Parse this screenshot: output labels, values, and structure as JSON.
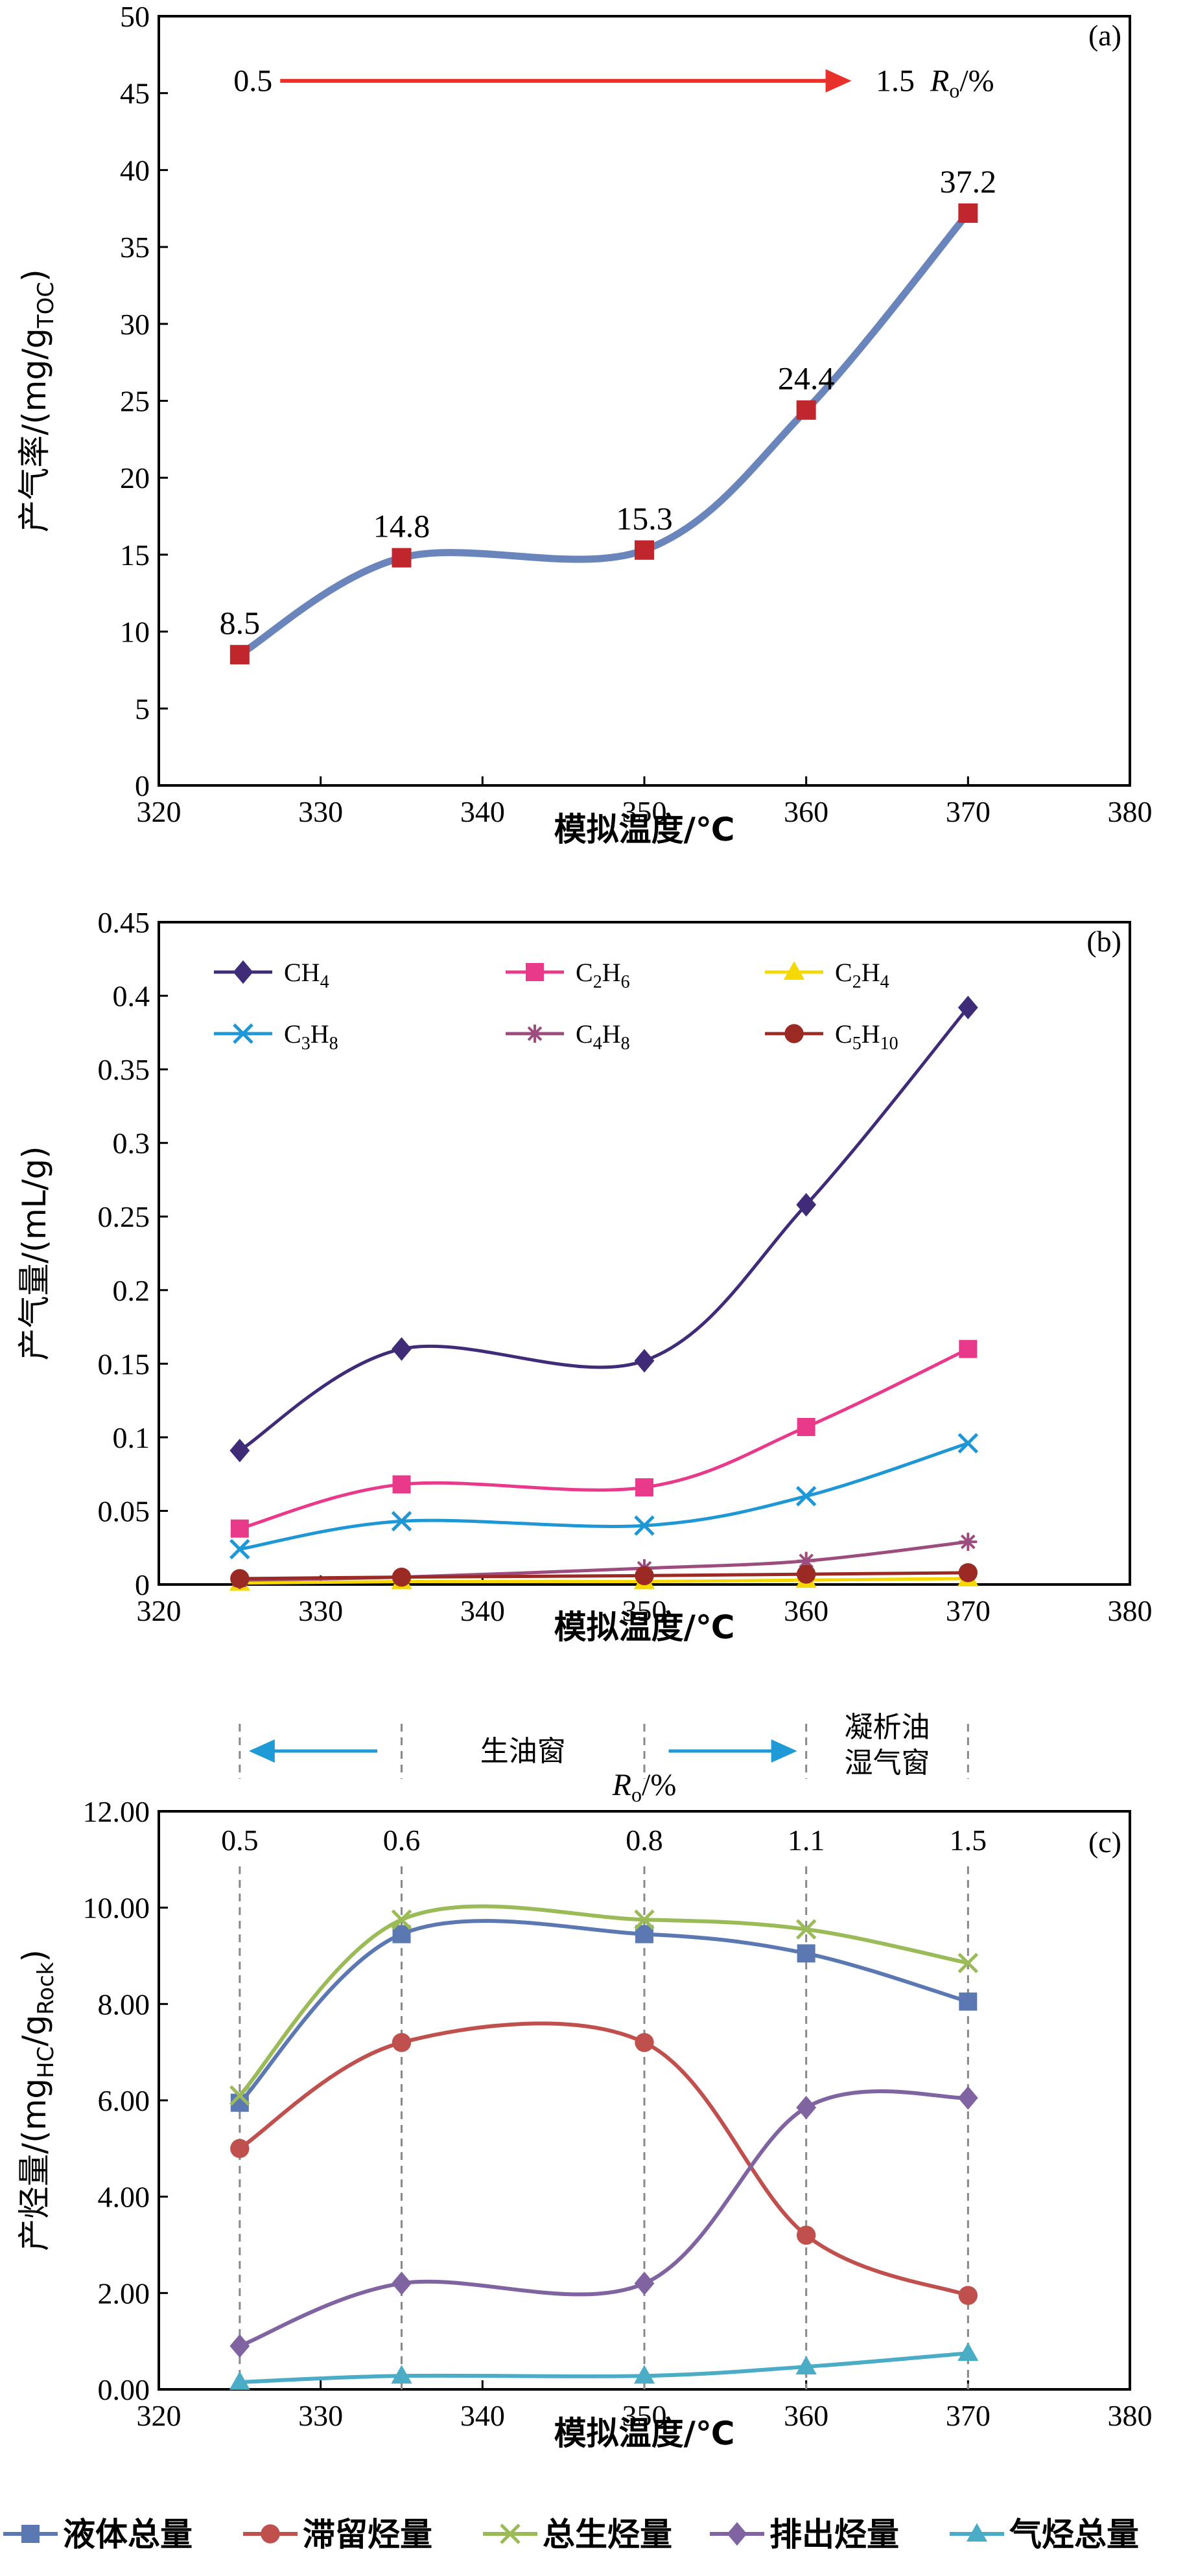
{
  "chart_data": [
    {
      "panel": "(a)",
      "type": "line",
      "x": [
        325,
        335,
        350,
        360,
        370
      ],
      "values": [
        8.5,
        14.8,
        15.3,
        24.4,
        37.2
      ],
      "data_labels": [
        "8.5",
        "14.8",
        "15.3",
        "24.4",
        "37.2"
      ],
      "xlabel": "模拟温度/℃",
      "ylabel_main": "产气率/(mg/g",
      "ylabel_sub": "TOC",
      "ylabel_close": ")",
      "xlim": [
        320,
        380
      ],
      "ylim": [
        0,
        50
      ],
      "xticks": [
        "320",
        "330",
        "340",
        "350",
        "360",
        "370",
        "380"
      ],
      "yticks": [
        "0",
        "5",
        "10",
        "15",
        "20",
        "25",
        "30",
        "35",
        "40",
        "45",
        "50"
      ],
      "line_color": "#6a85bb",
      "marker_color": "#c0272d",
      "arrow": {
        "from_label": "0.5",
        "to_label": "1.5",
        "unit_italic": "R",
        "unit_sub": "o",
        "unit_rest": "/%",
        "color": "#e8312a"
      },
      "grid": false
    },
    {
      "panel": "(b)",
      "type": "line",
      "x": [
        325,
        335,
        350,
        360,
        370
      ],
      "xlabel": "模拟温度/℃",
      "ylabel": "产气量/(mL/g)",
      "xlim": [
        320,
        380
      ],
      "ylim": [
        0,
        0.45
      ],
      "xticks": [
        "320",
        "330",
        "340",
        "350",
        "360",
        "370",
        "380"
      ],
      "yticks": [
        "0",
        "0.05",
        "0.1",
        "0.15",
        "0.2",
        "0.25",
        "0.3",
        "0.35",
        "0.4",
        "0.45"
      ],
      "legend_position": "top-left",
      "series": [
        {
          "name_base": "CH",
          "name_sub": "4",
          "values": [
            0.091,
            0.16,
            0.152,
            0.258,
            0.392
          ],
          "color": "#3f2b78",
          "marker": "diamond"
        },
        {
          "name_base": "C",
          "name_mid": "2",
          "name_base2": "H",
          "name_sub": "6",
          "values": [
            0.038,
            0.068,
            0.066,
            0.107,
            0.16
          ],
          "color": "#e8398b",
          "marker": "square"
        },
        {
          "name_base": "C",
          "name_mid": "2",
          "name_base2": "H",
          "name_sub": "4",
          "values": [
            0.001,
            0.002,
            0.002,
            0.003,
            0.004
          ],
          "color": "#f5d800",
          "marker": "triangle"
        },
        {
          "name_base": "C",
          "name_mid": "3",
          "name_base2": "H",
          "name_sub": "8",
          "values": [
            0.024,
            0.043,
            0.04,
            0.06,
            0.096
          ],
          "color": "#1f97d4",
          "marker": "x"
        },
        {
          "name_base": "C",
          "name_mid": "4",
          "name_base2": "H",
          "name_sub": "8",
          "values": [
            0.003,
            0.005,
            0.011,
            0.016,
            0.029
          ],
          "color": "#9c4d7e",
          "marker": "star"
        },
        {
          "name_base": "C",
          "name_mid": "5",
          "name_base2": "H",
          "name_sub": "10",
          "values": [
            0.004,
            0.005,
            0.006,
            0.007,
            0.008
          ],
          "color": "#9b2a24",
          "marker": "circle"
        }
      ],
      "grid": false
    },
    {
      "panel": "(c)",
      "type": "line",
      "x": [
        325,
        335,
        350,
        360,
        370
      ],
      "xlabel": "模拟温度/℃",
      "ylabel_main": "产烃量/(mg",
      "ylabel_sub1": "HC",
      "ylabel_mid": "/g",
      "ylabel_sub2": "Rock",
      "ylabel_close": ")",
      "xlim": [
        320,
        380
      ],
      "ylim": [
        0,
        12
      ],
      "xticks": [
        "320",
        "330",
        "340",
        "350",
        "360",
        "370",
        "380"
      ],
      "yticks": [
        "0.00",
        "2.00",
        "4.00",
        "6.00",
        "8.00",
        "10.00",
        "12.00"
      ],
      "ro_ticks": [
        "0.5",
        "0.6",
        "0.8",
        "1.1",
        "1.5"
      ],
      "ro_label_italic": "R",
      "ro_label_sub": "o",
      "ro_label_rest": "/%",
      "window_oil": "生油窗",
      "window_wet_line1": "凝析油",
      "window_wet_line2": "湿气窗",
      "arrow_color": "#1f9ad6",
      "legend_position": "bottom",
      "series": [
        {
          "name": "液体总量",
          "values": [
            5.95,
            9.45,
            9.45,
            9.05,
            8.05
          ],
          "color": "#5b78b3",
          "marker": "square"
        },
        {
          "name": "滞留烃量",
          "values": [
            5.0,
            7.2,
            7.2,
            3.2,
            1.95
          ],
          "color": "#c0504d",
          "marker": "circle"
        },
        {
          "name": "总生烃量",
          "values": [
            6.1,
            9.75,
            9.75,
            9.55,
            8.85
          ],
          "color": "#9bbb59",
          "marker": "x"
        },
        {
          "name": "排出烃量",
          "values": [
            0.9,
            2.2,
            2.2,
            5.85,
            6.05
          ],
          "color": "#8064a2",
          "marker": "diamond"
        },
        {
          "name": "气烃总量",
          "values": [
            0.15,
            0.28,
            0.28,
            0.47,
            0.75
          ],
          "color": "#4bacc6",
          "marker": "triangle"
        }
      ],
      "grid": false
    }
  ]
}
